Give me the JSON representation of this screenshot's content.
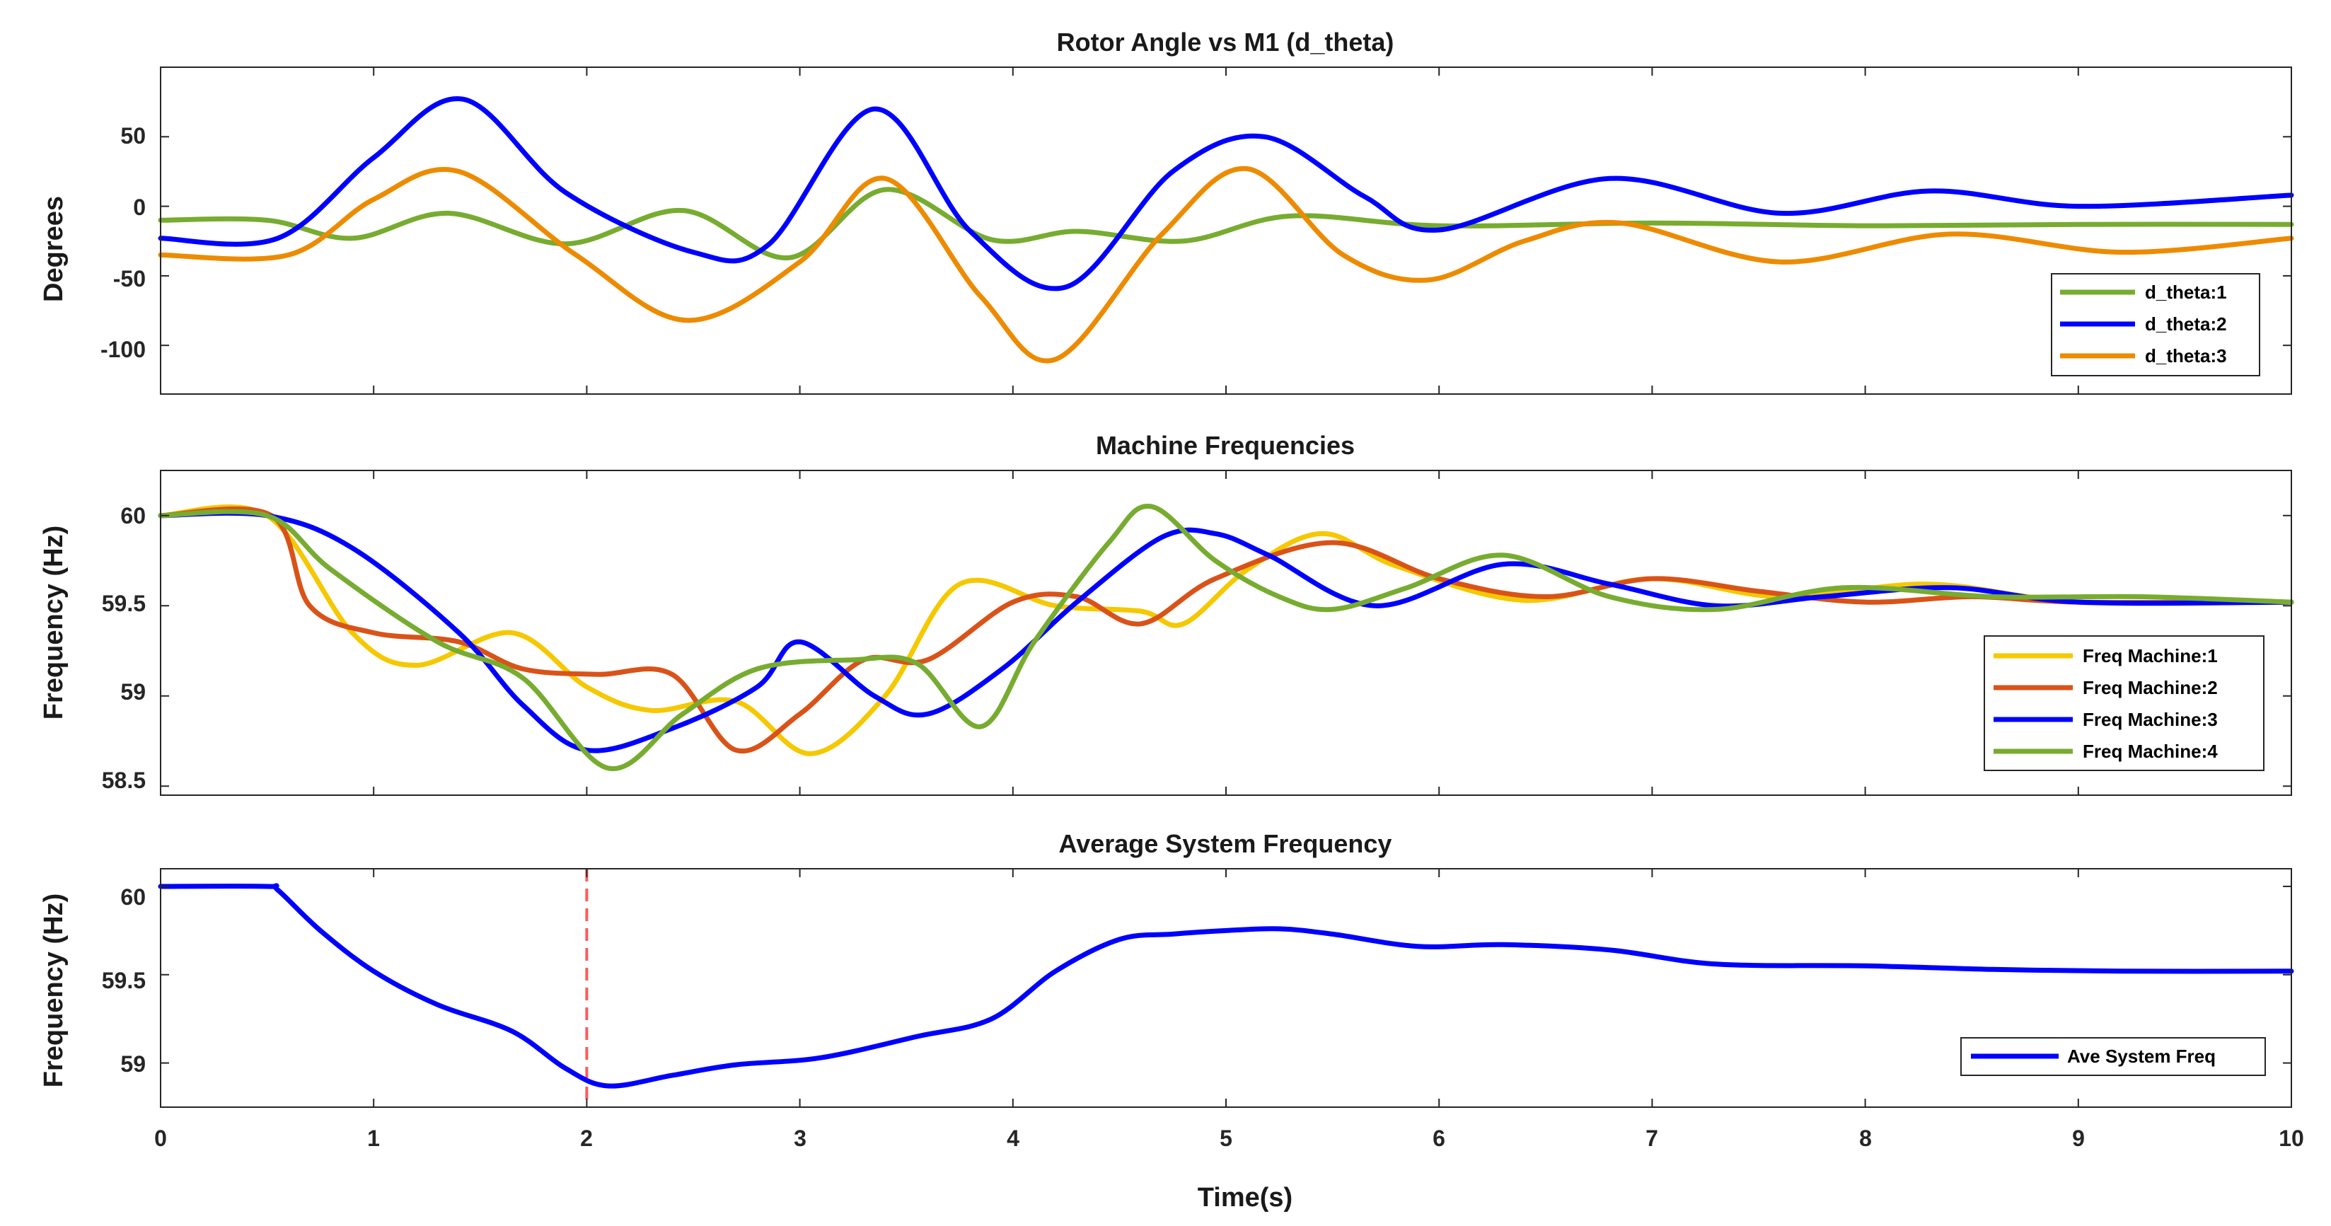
{
  "chart_data": [
    {
      "type": "line",
      "title": "Rotor Angle vs M1 (d_theta)",
      "xlabel": "",
      "ylabel": "Degrees",
      "xlim": [
        0,
        10
      ],
      "ylim": [
        -135,
        100
      ],
      "yticks": [
        50,
        0,
        -50,
        -100
      ],
      "yticklabels": [
        "50",
        "0",
        "-50",
        "-100"
      ],
      "legend_position": "bottom-right",
      "series": [
        {
          "name": "d_theta:1",
          "color": "#77ac30",
          "x": [
            0,
            0.5,
            0.9,
            1.35,
            1.9,
            2.45,
            2.95,
            3.4,
            3.9,
            4.3,
            4.8,
            5.3,
            6,
            7,
            8,
            9,
            10
          ],
          "y": [
            -10,
            -10,
            -23,
            -5,
            -27,
            -3,
            -37,
            12,
            -24,
            -18,
            -25,
            -7,
            -14,
            -12,
            -14,
            -13,
            -13
          ]
        },
        {
          "name": "d_theta:2",
          "color": "#0000ff",
          "x": [
            0,
            0.55,
            1.0,
            1.42,
            1.9,
            2.5,
            2.85,
            3.35,
            3.8,
            4.25,
            4.75,
            5.18,
            5.65,
            6.0,
            6.8,
            7.6,
            8.3,
            9.0,
            10
          ],
          "y": [
            -23,
            -23,
            35,
            77,
            10,
            -33,
            -28,
            70,
            -18,
            -58,
            25,
            50,
            7,
            -17,
            20,
            -5,
            11,
            0,
            8
          ]
        },
        {
          "name": "d_theta:3",
          "color": "#ed8b00",
          "x": [
            0,
            0.6,
            1.0,
            1.4,
            1.95,
            2.47,
            3.0,
            3.4,
            3.85,
            4.2,
            4.7,
            5.1,
            5.55,
            5.95,
            6.4,
            6.85,
            7.6,
            8.4,
            9.2,
            10
          ],
          "y": [
            -35,
            -35,
            5,
            25,
            -35,
            -82,
            -40,
            20,
            -65,
            -110,
            -20,
            27,
            -35,
            -53,
            -25,
            -12,
            -40,
            -20,
            -33,
            -23
          ]
        }
      ]
    },
    {
      "type": "line",
      "title": "Machine Frequencies",
      "xlabel": "",
      "ylabel": "Frequency (Hz)",
      "xlim": [
        0,
        10
      ],
      "ylim": [
        58.45,
        60.25
      ],
      "yticks": [
        60,
        59.5,
        59,
        58.5
      ],
      "yticklabels": [
        "60",
        "59.5",
        "59",
        "58.5"
      ],
      "legend_position": "bottom-right",
      "series": [
        {
          "name": "Freq Machine:1",
          "color": "#f5c800",
          "x": [
            0,
            0.5,
            0.9,
            1.2,
            1.65,
            2.0,
            2.3,
            2.7,
            3.05,
            3.4,
            3.75,
            4.2,
            4.6,
            4.8,
            5.1,
            5.45,
            5.8,
            6.4,
            7.0,
            7.6,
            8.3,
            9.0,
            10
          ],
          "y": [
            60,
            60,
            59.35,
            59.17,
            59.35,
            59.05,
            58.92,
            58.97,
            58.68,
            59.0,
            59.62,
            59.5,
            59.47,
            59.4,
            59.7,
            59.9,
            59.72,
            59.53,
            59.65,
            59.55,
            59.62,
            59.52,
            59.52
          ]
        },
        {
          "name": "Freq Machine:2",
          "color": "#d95319",
          "x": [
            0,
            0.52,
            0.7,
            1.0,
            1.4,
            1.7,
            2.05,
            2.4,
            2.7,
            3.0,
            3.3,
            3.6,
            4.0,
            4.3,
            4.6,
            4.95,
            5.5,
            6.0,
            6.5,
            7.0,
            7.5,
            8.0,
            8.5,
            9.0,
            10
          ],
          "y": [
            60,
            60,
            59.5,
            59.35,
            59.3,
            59.15,
            59.12,
            59.12,
            58.7,
            58.9,
            59.2,
            59.2,
            59.52,
            59.55,
            59.4,
            59.65,
            59.85,
            59.65,
            59.55,
            59.65,
            59.58,
            59.52,
            59.55,
            59.52,
            59.52
          ]
        },
        {
          "name": "Freq Machine:3",
          "color": "#0000ff",
          "x": [
            0,
            0.5,
            0.9,
            1.4,
            1.7,
            2.0,
            2.4,
            2.8,
            3.0,
            3.35,
            3.6,
            3.95,
            4.3,
            4.7,
            4.95,
            5.2,
            5.7,
            6.3,
            6.8,
            7.3,
            7.8,
            8.4,
            9.0,
            10
          ],
          "y": [
            60,
            60,
            59.82,
            59.35,
            58.95,
            58.7,
            58.82,
            59.05,
            59.3,
            59.0,
            58.9,
            59.15,
            59.52,
            59.88,
            59.9,
            59.78,
            59.5,
            59.73,
            59.62,
            59.5,
            59.55,
            59.6,
            59.52,
            59.52
          ]
        },
        {
          "name": "Freq Machine:4",
          "color": "#77ac30",
          "x": [
            0,
            0.5,
            0.8,
            1.3,
            1.7,
            2.1,
            2.45,
            2.8,
            3.25,
            3.55,
            3.85,
            4.1,
            4.45,
            4.65,
            4.95,
            5.25,
            5.5,
            5.85,
            6.3,
            6.8,
            7.3,
            7.9,
            8.6,
            9.3,
            10
          ],
          "y": [
            60,
            60,
            59.7,
            59.3,
            59.1,
            58.6,
            58.9,
            59.15,
            59.2,
            59.18,
            58.83,
            59.3,
            59.85,
            60.05,
            59.75,
            59.55,
            59.48,
            59.6,
            59.78,
            59.55,
            59.48,
            59.6,
            59.55,
            59.55,
            59.52
          ]
        }
      ]
    },
    {
      "type": "line",
      "title": "Average System Frequency",
      "xlabel": "Time(s)",
      "ylabel": "Frequency (Hz)",
      "xlim": [
        0,
        10
      ],
      "ylim": [
        58.75,
        60.1
      ],
      "yticks": [
        60,
        59.5,
        59
      ],
      "yticklabels": [
        "60",
        "59.5",
        "59"
      ],
      "xticks": [
        0,
        1,
        2,
        3,
        4,
        5,
        6,
        7,
        8,
        9,
        10
      ],
      "xticklabels": [
        "0",
        "1",
        "2",
        "3",
        "4",
        "5",
        "6",
        "7",
        "8",
        "9",
        "10"
      ],
      "vline": {
        "x": 2,
        "color": "#ff5a5a"
      },
      "legend_position": "bottom-right",
      "series": [
        {
          "name": "Ave System Freq",
          "color": "#0000ff",
          "x": [
            0,
            0.5,
            0.55,
            0.75,
            1.0,
            1.3,
            1.65,
            1.9,
            2.1,
            2.4,
            2.7,
            3.1,
            3.55,
            3.9,
            4.2,
            4.5,
            4.75,
            5.0,
            5.25,
            5.5,
            5.9,
            6.3,
            6.8,
            7.3,
            8.0,
            8.6,
            9.2,
            10
          ],
          "y": [
            60,
            60,
            59.98,
            59.75,
            59.52,
            59.33,
            59.18,
            58.97,
            58.87,
            58.93,
            58.99,
            59.03,
            59.15,
            59.25,
            59.52,
            59.7,
            59.73,
            59.75,
            59.76,
            59.73,
            59.66,
            59.67,
            59.64,
            59.56,
            59.55,
            59.53,
            59.52,
            59.52
          ]
        }
      ]
    }
  ]
}
